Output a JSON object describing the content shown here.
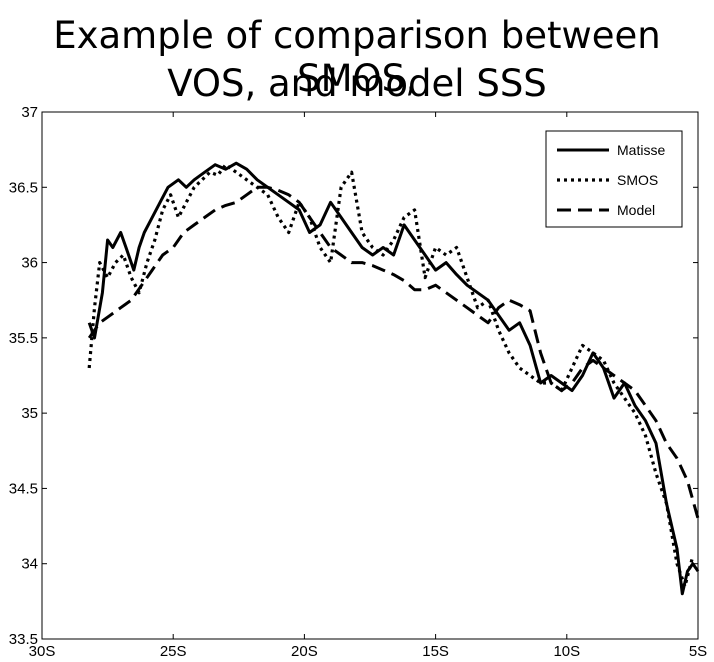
{
  "chart_data": {
    "type": "line",
    "title_line1": "Example of comparison between SMOS,",
    "title_line2": "VOS, and model SSS",
    "xlabel": "",
    "ylabel": "",
    "xlim": [
      -30,
      -5
    ],
    "ylim": [
      33.5,
      37
    ],
    "x_ticks": [
      {
        "value": -30,
        "label": "30S"
      },
      {
        "value": -25,
        "label": "25S"
      },
      {
        "value": -20,
        "label": "20S"
      },
      {
        "value": -15,
        "label": "15S"
      },
      {
        "value": -10,
        "label": "10S"
      },
      {
        "value": -5,
        "label": "5S"
      }
    ],
    "y_ticks": [
      {
        "value": 33.5,
        "label": "33.5"
      },
      {
        "value": 34,
        "label": "34"
      },
      {
        "value": 34.5,
        "label": "34.5"
      },
      {
        "value": 35,
        "label": "35"
      },
      {
        "value": 35.5,
        "label": "35.5"
      },
      {
        "value": 36,
        "label": "36"
      },
      {
        "value": 36.5,
        "label": "36.5"
      },
      {
        "value": 37,
        "label": "37"
      }
    ],
    "grid": false,
    "legend_position": "top-right",
    "series": [
      {
        "name": "Matisse",
        "style": "solid",
        "x": [
          -28.2,
          -28.0,
          -27.7,
          -27.5,
          -27.3,
          -27.0,
          -26.8,
          -26.5,
          -26.3,
          -26.1,
          -25.8,
          -25.5,
          -25.2,
          -24.8,
          -24.5,
          -24.2,
          -23.8,
          -23.4,
          -23.0,
          -22.6,
          -22.2,
          -21.8,
          -21.4,
          -21.0,
          -20.6,
          -20.2,
          -19.8,
          -19.4,
          -19.0,
          -18.6,
          -18.2,
          -17.8,
          -17.4,
          -17.0,
          -16.6,
          -16.2,
          -15.8,
          -15.4,
          -15.0,
          -14.6,
          -14.2,
          -13.8,
          -13.4,
          -13.0,
          -12.6,
          -12.2,
          -11.8,
          -11.4,
          -11.0,
          -10.6,
          -10.2,
          -9.8,
          -9.4,
          -9.0,
          -8.6,
          -8.2,
          -7.8,
          -7.4,
          -7.0,
          -6.6,
          -6.2,
          -5.8,
          -5.6,
          -5.4,
          -5.2,
          -5.0
        ],
        "y": [
          35.6,
          35.5,
          35.8,
          36.15,
          36.1,
          36.2,
          36.1,
          35.95,
          36.1,
          36.2,
          36.3,
          36.4,
          36.5,
          36.55,
          36.5,
          36.55,
          36.6,
          36.65,
          36.62,
          36.66,
          36.62,
          36.55,
          36.5,
          36.45,
          36.4,
          36.35,
          36.2,
          36.25,
          36.4,
          36.3,
          36.2,
          36.1,
          36.05,
          36.1,
          36.05,
          36.25,
          36.15,
          36.05,
          35.95,
          36.0,
          35.92,
          35.85,
          35.8,
          35.75,
          35.65,
          35.55,
          35.6,
          35.45,
          35.2,
          35.25,
          35.2,
          35.15,
          35.25,
          35.4,
          35.3,
          35.1,
          35.2,
          35.05,
          34.95,
          34.8,
          34.4,
          34.1,
          33.8,
          33.95,
          34.0,
          33.95
        ]
      },
      {
        "name": "SMOS",
        "style": "dotted",
        "x": [
          -28.2,
          -28.0,
          -27.8,
          -27.5,
          -27.2,
          -26.9,
          -26.6,
          -26.3,
          -26.0,
          -25.7,
          -25.4,
          -25.1,
          -24.8,
          -24.5,
          -24.2,
          -23.9,
          -23.6,
          -23.3,
          -23.0,
          -22.6,
          -22.2,
          -21.8,
          -21.4,
          -21.0,
          -20.6,
          -20.2,
          -19.8,
          -19.4,
          -19.0,
          -18.6,
          -18.2,
          -17.8,
          -17.4,
          -17.0,
          -16.6,
          -16.2,
          -15.8,
          -15.4,
          -15.0,
          -14.6,
          -14.2,
          -13.8,
          -13.4,
          -13.0,
          -12.6,
          -12.2,
          -11.8,
          -11.4,
          -11.0,
          -10.6,
          -10.2,
          -9.8,
          -9.4,
          -9.0,
          -8.6,
          -8.2,
          -7.8,
          -7.4,
          -7.0,
          -6.6,
          -6.2,
          -5.8,
          -5.5,
          -5.2
        ],
        "y": [
          35.3,
          35.7,
          36.0,
          35.9,
          36.0,
          36.05,
          35.9,
          35.8,
          36.0,
          36.15,
          36.35,
          36.45,
          36.3,
          36.4,
          36.5,
          36.55,
          36.6,
          36.58,
          36.65,
          36.6,
          36.55,
          36.5,
          36.45,
          36.3,
          36.2,
          36.4,
          36.3,
          36.1,
          36.0,
          36.5,
          36.6,
          36.2,
          36.1,
          36.05,
          36.15,
          36.3,
          36.35,
          35.9,
          36.1,
          36.05,
          36.1,
          35.9,
          35.7,
          35.75,
          35.55,
          35.4,
          35.3,
          35.25,
          35.2,
          35.2,
          35.15,
          35.3,
          35.45,
          35.4,
          35.35,
          35.2,
          35.1,
          35.0,
          34.85,
          34.6,
          34.4,
          34.0,
          33.85,
          34.05
        ]
      },
      {
        "name": "Model",
        "style": "dashed",
        "x": [
          -28.2,
          -27.8,
          -27.4,
          -27.0,
          -26.6,
          -26.2,
          -25.8,
          -25.4,
          -25.0,
          -24.6,
          -24.2,
          -23.8,
          -23.4,
          -23.0,
          -22.6,
          -22.2,
          -21.8,
          -21.4,
          -21.0,
          -20.6,
          -20.2,
          -19.8,
          -19.4,
          -19.0,
          -18.6,
          -18.2,
          -17.8,
          -17.4,
          -17.0,
          -16.6,
          -16.2,
          -15.8,
          -15.4,
          -15.0,
          -14.6,
          -14.2,
          -13.8,
          -13.4,
          -13.0,
          -12.6,
          -12.2,
          -11.8,
          -11.4,
          -11.0,
          -10.6,
          -10.2,
          -9.8,
          -9.4,
          -9.0,
          -8.6,
          -8.2,
          -7.8,
          -7.4,
          -7.0,
          -6.6,
          -6.2,
          -5.8,
          -5.4,
          -5.0
        ],
        "y": [
          35.5,
          35.6,
          35.65,
          35.7,
          35.75,
          35.85,
          35.95,
          36.05,
          36.1,
          36.2,
          36.25,
          36.3,
          36.35,
          36.38,
          36.4,
          36.45,
          36.5,
          36.5,
          36.48,
          36.45,
          36.4,
          36.3,
          36.2,
          36.1,
          36.05,
          36.0,
          36.0,
          35.98,
          35.95,
          35.92,
          35.88,
          35.82,
          35.82,
          35.85,
          35.8,
          35.75,
          35.7,
          35.65,
          35.6,
          35.7,
          35.75,
          35.72,
          35.68,
          35.4,
          35.2,
          35.15,
          35.2,
          35.3,
          35.35,
          35.3,
          35.25,
          35.2,
          35.15,
          35.05,
          34.95,
          34.8,
          34.7,
          34.55,
          34.3
        ]
      }
    ]
  }
}
